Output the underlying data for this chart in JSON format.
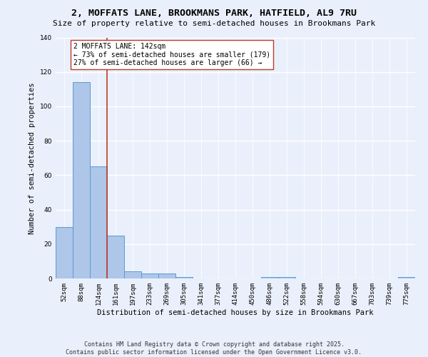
{
  "title": "2, MOFFATS LANE, BROOKMANS PARK, HATFIELD, AL9 7RU",
  "subtitle": "Size of property relative to semi-detached houses in Brookmans Park",
  "xlabel": "Distribution of semi-detached houses by size in Brookmans Park",
  "ylabel": "Number of semi-detached properties",
  "bin_labels": [
    "52sqm",
    "88sqm",
    "124sqm",
    "161sqm",
    "197sqm",
    "233sqm",
    "269sqm",
    "305sqm",
    "341sqm",
    "377sqm",
    "414sqm",
    "450sqm",
    "486sqm",
    "522sqm",
    "558sqm",
    "594sqm",
    "630sqm",
    "667sqm",
    "703sqm",
    "739sqm",
    "775sqm"
  ],
  "bin_values": [
    30,
    114,
    65,
    25,
    4,
    3,
    3,
    1,
    0,
    0,
    0,
    0,
    1,
    1,
    0,
    0,
    0,
    0,
    0,
    0,
    1
  ],
  "bar_color": "#aec6e8",
  "bar_edge_color": "#5b9bd5",
  "property_bin_index": 2,
  "vline_color": "#c0392b",
  "annotation_text": "2 MOFFATS LANE: 142sqm\n← 73% of semi-detached houses are smaller (179)\n27% of semi-detached houses are larger (66) →",
  "annotation_box_color": "#ffffff",
  "annotation_box_edge": "#c0392b",
  "ylim": [
    0,
    140
  ],
  "yticks": [
    0,
    20,
    40,
    60,
    80,
    100,
    120,
    140
  ],
  "footer_line1": "Contains HM Land Registry data © Crown copyright and database right 2025.",
  "footer_line2": "Contains public sector information licensed under the Open Government Licence v3.0.",
  "bg_color": "#eaf0fb",
  "fig_bg_color": "#eaf0fb",
  "grid_color": "#ffffff",
  "title_fontsize": 9.5,
  "subtitle_fontsize": 8,
  "axis_label_fontsize": 7.5,
  "tick_fontsize": 6.5,
  "annotation_fontsize": 7,
  "footer_fontsize": 6
}
